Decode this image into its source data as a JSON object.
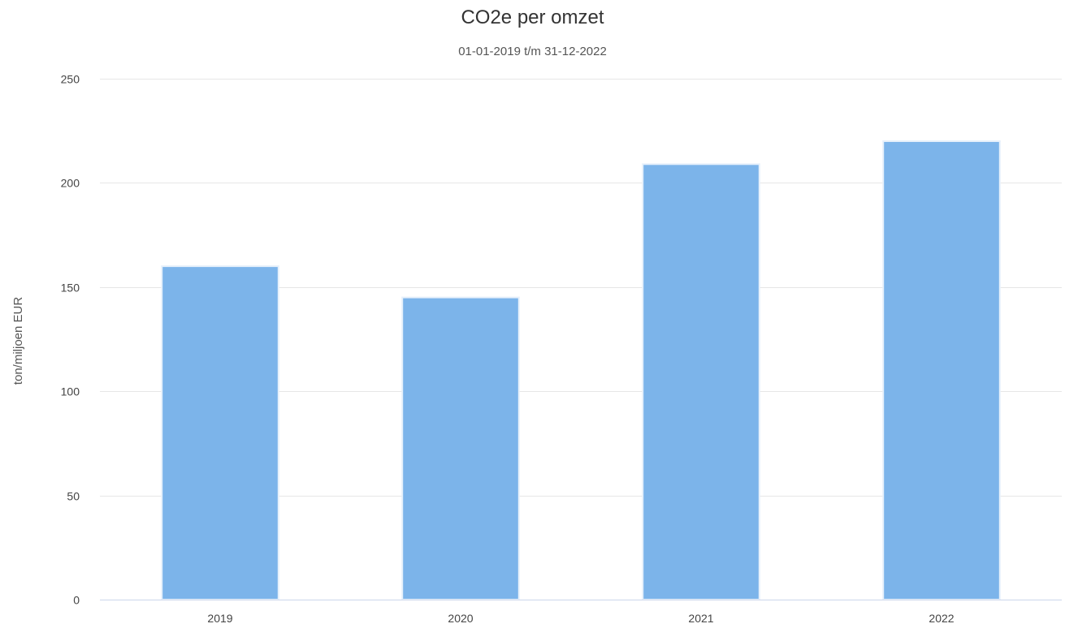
{
  "chart_data": {
    "type": "bar",
    "title": "CO2e per omzet",
    "subtitle": "01-01-2019 t/m 31-12-2022",
    "xlabel": "",
    "ylabel": "ton/miljoen EUR",
    "categories": [
      "2019",
      "2020",
      "2021",
      "2022"
    ],
    "values": [
      160,
      145,
      209,
      220
    ],
    "ylim": [
      0,
      250
    ],
    "yticks": [
      0,
      50,
      100,
      150,
      200,
      250
    ],
    "grid": true,
    "legend": "none",
    "colors": {
      "bar": "#7cb4ea",
      "bar_edge": "#e6f0fb",
      "grid": "#e6e6e6",
      "axis": "#ccd6eb"
    }
  }
}
